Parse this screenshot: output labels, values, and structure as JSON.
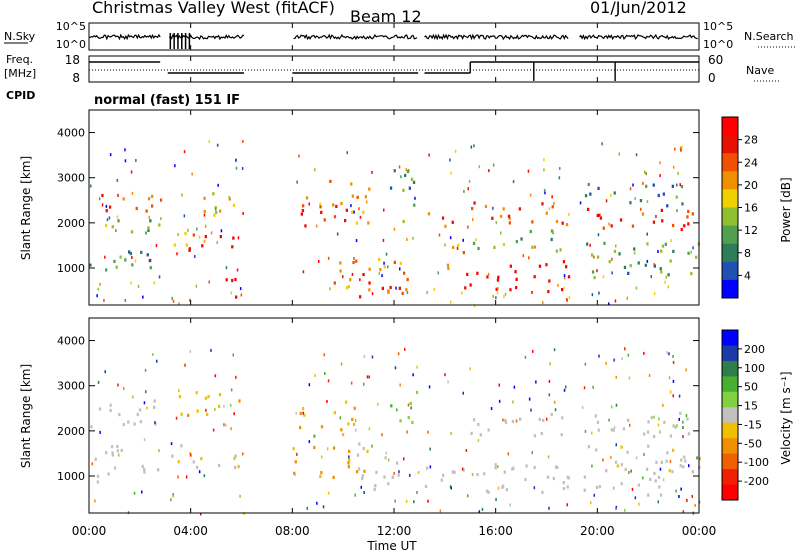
{
  "header": {
    "station": "Christmas Valley West (fitACF)",
    "beam": "Beam 12",
    "date": "01/Jun/2012"
  },
  "top_panels": {
    "nsky_label": "N.Sky",
    "nsky_ticks": [
      "10^5",
      "10^0"
    ],
    "nsearch_label": "N.Search",
    "nsearch_ticks": [
      "10^5",
      "10^0"
    ],
    "freq_label_1": "Freq.",
    "freq_label_2": "[MHz]",
    "freq_ticks": [
      "18",
      "8"
    ],
    "nave_label": "Nave",
    "nave_ticks": [
      "60",
      "0"
    ],
    "cpid_label": "CPID",
    "cpid_text": "normal (fast) 151 IF"
  },
  "colors": {
    "power_scale": [
      "#0000ff",
      "#1f50b4",
      "#2e7d5a",
      "#50a050",
      "#90c030",
      "#f0d000",
      "#f09000",
      "#f05000",
      "#e81000",
      "#ff0000"
    ],
    "velocity_scale": [
      "#0000ff",
      "#1a3aa8",
      "#2e7d4a",
      "#48b030",
      "#80d040",
      "#c0c0c0",
      "#f0c000",
      "#f09000",
      "#f06000",
      "#f02000",
      "#ff0000"
    ],
    "grey_velocity": "#c0c0c0"
  },
  "chart_data": [
    {
      "type": "heatmap",
      "name": "power",
      "ylabel": "Slant Range [km]",
      "xlabel": "",
      "ylim": [
        180,
        4500
      ],
      "yticks": [
        "1000",
        "2000",
        "3000",
        "4000"
      ],
      "xticks": [
        "00:00",
        "04:00",
        "08:00",
        "12:00",
        "16:00",
        "20:00",
        "00:00"
      ],
      "xlim_hours": [
        0,
        24
      ],
      "colorbar_label": "Power [dB]",
      "colorbar_ticks": [
        "28",
        "24",
        "20",
        "16",
        "12",
        "8",
        "4"
      ],
      "colorbar_range": [
        0,
        30
      ],
      "bands": [
        {
          "t": [
            0.0,
            2.8
          ],
          "r": [
            2200,
            2700
          ],
          "v": 22
        },
        {
          "t": [
            0.0,
            2.8
          ],
          "r": [
            1800,
            2200
          ],
          "v": 12
        },
        {
          "t": [
            0.0,
            2.5
          ],
          "r": [
            900,
            1600
          ],
          "v": 10
        },
        {
          "t": [
            3.2,
            3.9
          ],
          "r": [
            1200,
            1800
          ],
          "v": 16
        },
        {
          "t": [
            3.9,
            6.0
          ],
          "r": [
            1300,
            1800
          ],
          "v": 27
        },
        {
          "t": [
            5.2,
            6.0
          ],
          "r": [
            300,
            1000
          ],
          "v": 26
        },
        {
          "t": [
            4.3,
            6.0
          ],
          "r": [
            2200,
            2900
          ],
          "v": 16
        },
        {
          "t": [
            8.0,
            9.5
          ],
          "r": [
            1900,
            2600
          ],
          "v": 23
        },
        {
          "t": [
            8.8,
            11.0
          ],
          "r": [
            2000,
            3000
          ],
          "v": 20
        },
        {
          "t": [
            9.5,
            12.5
          ],
          "r": [
            500,
            1300
          ],
          "v": 20
        },
        {
          "t": [
            10.5,
            13.0
          ],
          "r": [
            300,
            900
          ],
          "v": 24
        },
        {
          "t": [
            11.8,
            13.0
          ],
          "r": [
            2000,
            3200
          ],
          "v": 8
        },
        {
          "t": [
            13.0,
            14.5
          ],
          "r": [
            1800,
            2400
          ],
          "v": 24
        },
        {
          "t": [
            14.0,
            15.0
          ],
          "r": [
            900,
            1600
          ],
          "v": 22
        },
        {
          "t": [
            14.7,
            19.0
          ],
          "r": [
            500,
            1200
          ],
          "v": 29
        },
        {
          "t": [
            15.0,
            19.0
          ],
          "r": [
            1900,
            2500
          ],
          "v": 24
        },
        {
          "t": [
            15.0,
            19.0
          ],
          "r": [
            1400,
            1900
          ],
          "v": 12
        },
        {
          "t": [
            19.5,
            24.0
          ],
          "r": [
            1800,
            2400
          ],
          "v": 25
        },
        {
          "t": [
            19.5,
            24.0
          ],
          "r": [
            700,
            1600
          ],
          "v": 10
        },
        {
          "t": [
            19.5,
            24.0
          ],
          "r": [
            2400,
            2900
          ],
          "v": 8
        }
      ]
    },
    {
      "type": "heatmap",
      "name": "velocity",
      "ylabel": "Slant Range [km]",
      "xlabel": "Time UT",
      "ylim": [
        180,
        4500
      ],
      "yticks": [
        "1000",
        "2000",
        "3000",
        "4000"
      ],
      "xticks": [
        "00:00",
        "04:00",
        "08:00",
        "12:00",
        "16:00",
        "20:00",
        "00:00"
      ],
      "xlim_hours": [
        0,
        24
      ],
      "colorbar_label": "Velocity [m s⁻¹]",
      "colorbar_ticks": [
        "200",
        "100",
        "50",
        "15",
        "-15",
        "-50",
        "-100",
        "-200"
      ],
      "colorbar_range": [
        -250,
        250
      ],
      "bands": [
        {
          "t": [
            0.0,
            2.8
          ],
          "r": [
            2000,
            2700
          ],
          "v": 0
        },
        {
          "t": [
            0.0,
            2.8
          ],
          "r": [
            900,
            1700
          ],
          "v": 0
        },
        {
          "t": [
            3.2,
            6.0
          ],
          "r": [
            1200,
            1800
          ],
          "v": -20
        },
        {
          "t": [
            3.5,
            6.0
          ],
          "r": [
            2300,
            2900
          ],
          "v": -60
        },
        {
          "t": [
            8.0,
            10.5
          ],
          "r": [
            1900,
            2700
          ],
          "v": -60
        },
        {
          "t": [
            8.0,
            11.0
          ],
          "r": [
            1000,
            1700
          ],
          "v": -80
        },
        {
          "t": [
            10.5,
            12.5
          ],
          "r": [
            700,
            1800
          ],
          "v": 0
        },
        {
          "t": [
            11.8,
            13.0
          ],
          "r": [
            2200,
            3000
          ],
          "v": 60
        },
        {
          "t": [
            13.0,
            24.0
          ],
          "r": [
            600,
            1300
          ],
          "v": 0
        },
        {
          "t": [
            15.0,
            19.0
          ],
          "r": [
            1900,
            2500
          ],
          "v": 0
        },
        {
          "t": [
            19.5,
            24.0
          ],
          "r": [
            1900,
            2500
          ],
          "v": 0
        },
        {
          "t": [
            19.5,
            24.0
          ],
          "r": [
            1100,
            1700
          ],
          "v": -10
        }
      ]
    }
  ]
}
